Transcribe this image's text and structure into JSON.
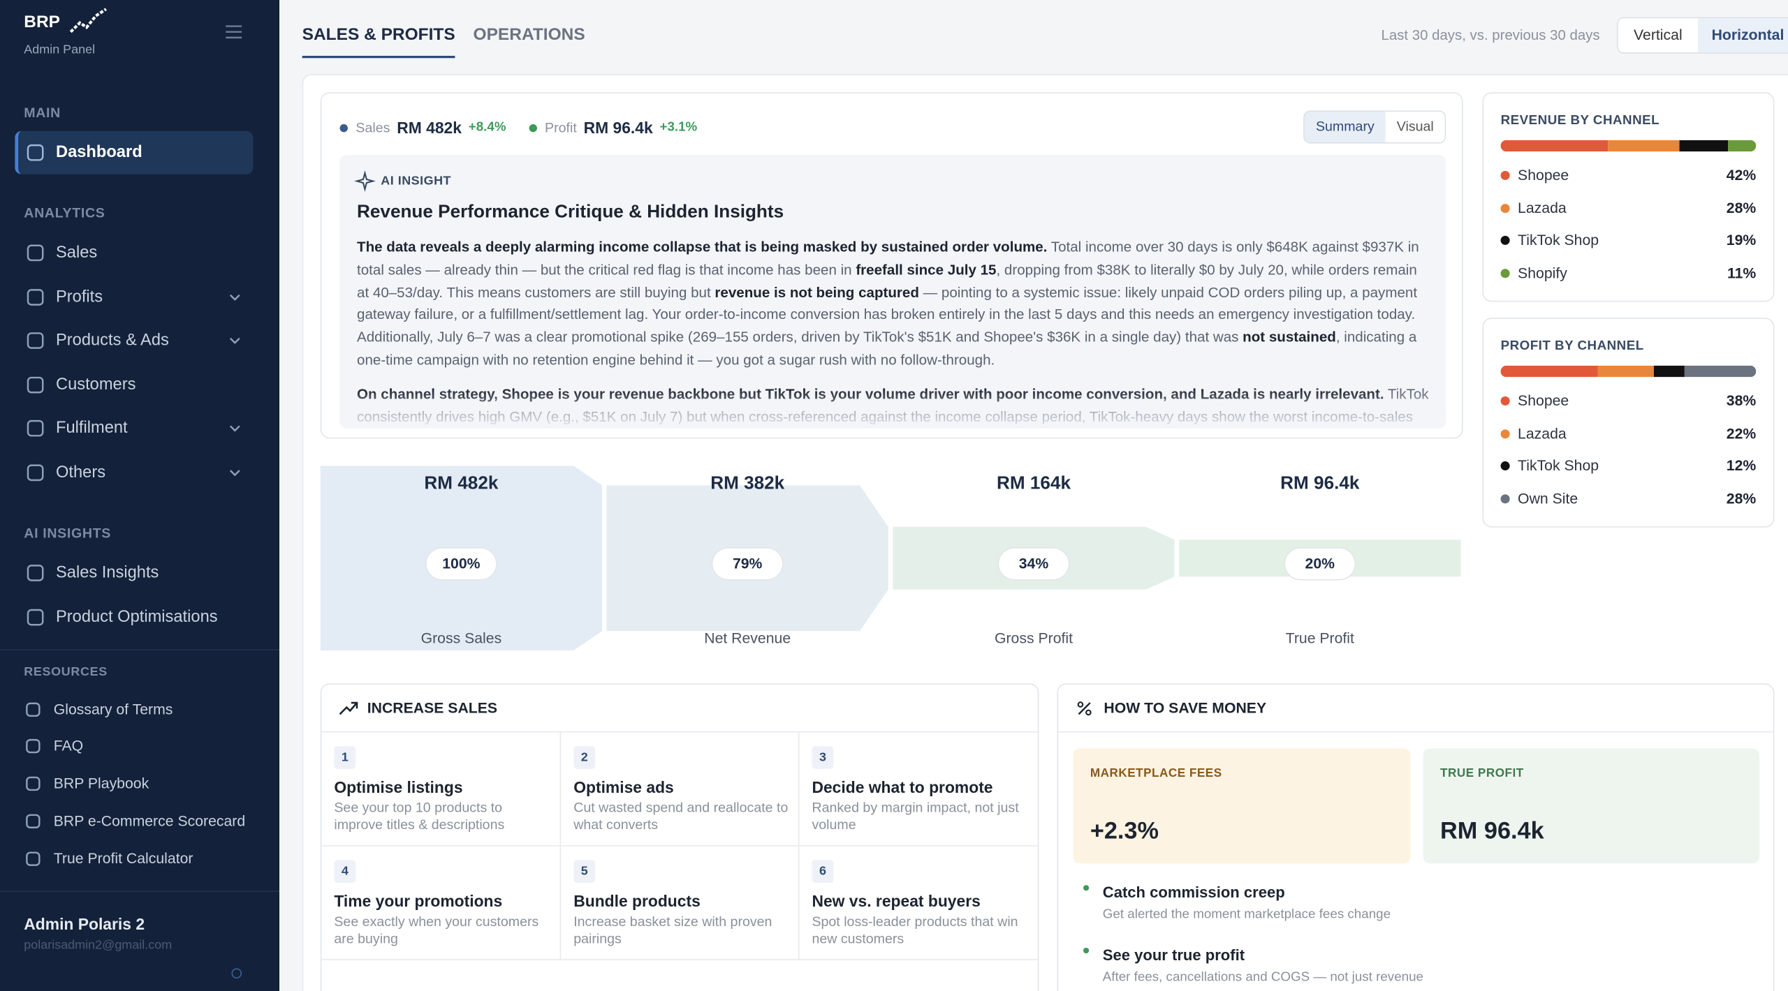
{
  "sidebar": {
    "brand": "BRP",
    "subtitle": "Admin Panel",
    "sections": [
      {
        "title": "MAIN",
        "items": [
          {
            "label": "Dashboard",
            "active": true
          }
        ]
      },
      {
        "title": "ANALYTICS",
        "items": [
          {
            "label": "Sales"
          },
          {
            "label": "Profits",
            "expandable": true
          },
          {
            "label": "Products & Ads",
            "expandable": true
          },
          {
            "label": "Customers"
          },
          {
            "label": "Fulfilment",
            "expandable": true
          },
          {
            "label": "Others",
            "expandable": true
          }
        ]
      },
      {
        "title": "AI INSIGHTS",
        "items": [
          {
            "label": "Sales Insights"
          },
          {
            "label": "Product Optimisations"
          }
        ]
      }
    ],
    "resources": {
      "title": "RESOURCES",
      "items": [
        "Glossary of Terms",
        "FAQ",
        "BRP Playbook",
        "BRP e-Commerce Scorecard",
        "True Profit Calculator"
      ]
    },
    "user": {
      "name": "Admin Polaris 2",
      "email": "polarisadmin2@gmail.com"
    }
  },
  "tabs": [
    {
      "label": "SALES & PROFITS",
      "active": true
    },
    {
      "label": "OPERATIONS"
    }
  ],
  "period": "Last 30 days, vs. previous 30 days",
  "orientation": {
    "options": [
      "Vertical",
      "Horizontal"
    ],
    "selected": 1
  },
  "summary": {
    "metrics": [
      {
        "name": "Sales",
        "value": "RM 482k",
        "change": "+8.4%",
        "color": "#3b5b8c"
      },
      {
        "name": "Profit",
        "value": "RM 96.4k",
        "change": "+3.1%",
        "color": "#3e9a5a"
      }
    ],
    "view": {
      "options": [
        "Summary",
        "Visual"
      ],
      "selected": 0
    },
    "insight": {
      "label": "AI INSIGHT",
      "title": "Revenue Performance Critique & Hidden Insights",
      "paragraphs": [
        [
          {
            "text": "The data reveals a deeply alarming income collapse that is being masked by sustained order volume.",
            "bold": true
          },
          {
            "text": " Total income over 30 days is only $648K against $937K in total sales — already thin — but the critical red flag is that income has been in "
          },
          {
            "text": "freefall since July 15",
            "bold": true
          },
          {
            "text": ", dropping from $38K to literally $0 by July 20, while orders remain at 40–53/day. This means customers are still buying but "
          },
          {
            "text": "revenue is not being captured",
            "bold": true
          },
          {
            "text": " — pointing to a systemic issue: likely unpaid COD orders piling up, a payment gateway failure, or a fulfillment/settlement lag. Your order-to-income conversion has broken entirely in the last 5 days and this needs an emergency investigation today. Additionally, July 6–7 was a clear promotional spike (269–155 orders, driven by TikTok's $51K and Shopee's $36K in a single day) that was "
          },
          {
            "text": "not sustained",
            "bold": true
          },
          {
            "text": ", indicating a one-time campaign with no retention engine behind it — you got a sugar rush with no follow-through."
          }
        ],
        [
          {
            "text": "On channel strategy, Shopee is your revenue backbone but TikTok is your volume driver with poor income conversion, and Lazada is nearly irrelevant.",
            "bold": true
          },
          {
            "text": " TikTok consistently drives high GMV (e.g., $51K on July 7) but when cross-referenced against the income collapse period, TikTok-heavy days show the worst income-to-sales"
          }
        ]
      ]
    }
  },
  "funnel": {
    "stages": [
      {
        "name": "Gross Sales",
        "amount": "RM 482k",
        "value": 100,
        "label": "100%",
        "color": "#e3ebf5"
      },
      {
        "name": "Net Revenue",
        "amount": "RM 382k",
        "value": 79,
        "label": "79%",
        "color": "#e5edf2"
      },
      {
        "name": "Gross Profit",
        "amount": "RM 164k",
        "value": 34,
        "label": "34%",
        "color": "#e4efe9"
      },
      {
        "name": "True Profit",
        "amount": "RM 96.4k",
        "value": 20,
        "label": "20%",
        "color": "#e2f0e5"
      }
    ]
  },
  "channels": [
    {
      "title": "REVENUE BY CHANNEL",
      "items": [
        {
          "name": "Shopee",
          "value": 42,
          "label": "42%",
          "color": "#e05a3a"
        },
        {
          "name": "Lazada",
          "value": 28,
          "label": "28%",
          "color": "#e8873a"
        },
        {
          "name": "TikTok Shop",
          "value": 19,
          "label": "19%",
          "color": "#111111"
        },
        {
          "name": "Shopify",
          "value": 11,
          "label": "11%",
          "color": "#6a9a3a"
        }
      ]
    },
    {
      "title": "PROFIT BY CHANNEL",
      "items": [
        {
          "name": "Shopee",
          "value": 38,
          "label": "38%",
          "color": "#e05a3a"
        },
        {
          "name": "Lazada",
          "value": 22,
          "label": "22%",
          "color": "#e8873a"
        },
        {
          "name": "TikTok Shop",
          "value": 12,
          "label": "12%",
          "color": "#111111"
        },
        {
          "name": "Own Site",
          "value": 28,
          "label": "28%",
          "color": "#6b7280"
        }
      ]
    }
  ],
  "increase_sales": {
    "title": "INCREASE SALES",
    "cards": [
      {
        "number": 1,
        "title": "Optimise listings",
        "description": "See your top 10 products to improve titles & descriptions"
      },
      {
        "number": 2,
        "title": "Optimise ads",
        "description": "Cut wasted spend and reallocate to what converts"
      },
      {
        "number": 3,
        "title": "Decide what to promote",
        "description": "Ranked by margin impact, not just volume"
      },
      {
        "number": 4,
        "title": "Time your promotions",
        "description": "See exactly when your customers are buying"
      },
      {
        "number": 5,
        "title": "Bundle products",
        "description": "Increase basket size with proven pairings"
      },
      {
        "number": 6,
        "title": "New vs. repeat buyers",
        "description": "Spot loss-leader products that win new customers"
      }
    ]
  },
  "save_money": {
    "title": "HOW TO SAVE MONEY",
    "tiles": [
      {
        "label": "MARKETPLACE FEES",
        "value": "+2.3%",
        "color": "#fdf3e2",
        "accent": "#8a5a1a"
      },
      {
        "label": "TRUE PROFIT",
        "value": "RM 96.4k",
        "color": "#eef5ef",
        "accent": "#3e7a4e"
      }
    ],
    "tips": [
      {
        "title": "Catch commission creep",
        "description": "Get alerted the moment marketplace fees change"
      },
      {
        "title": "See your true profit",
        "description": "After fees, cancellations and COGS — not just revenue"
      }
    ]
  }
}
